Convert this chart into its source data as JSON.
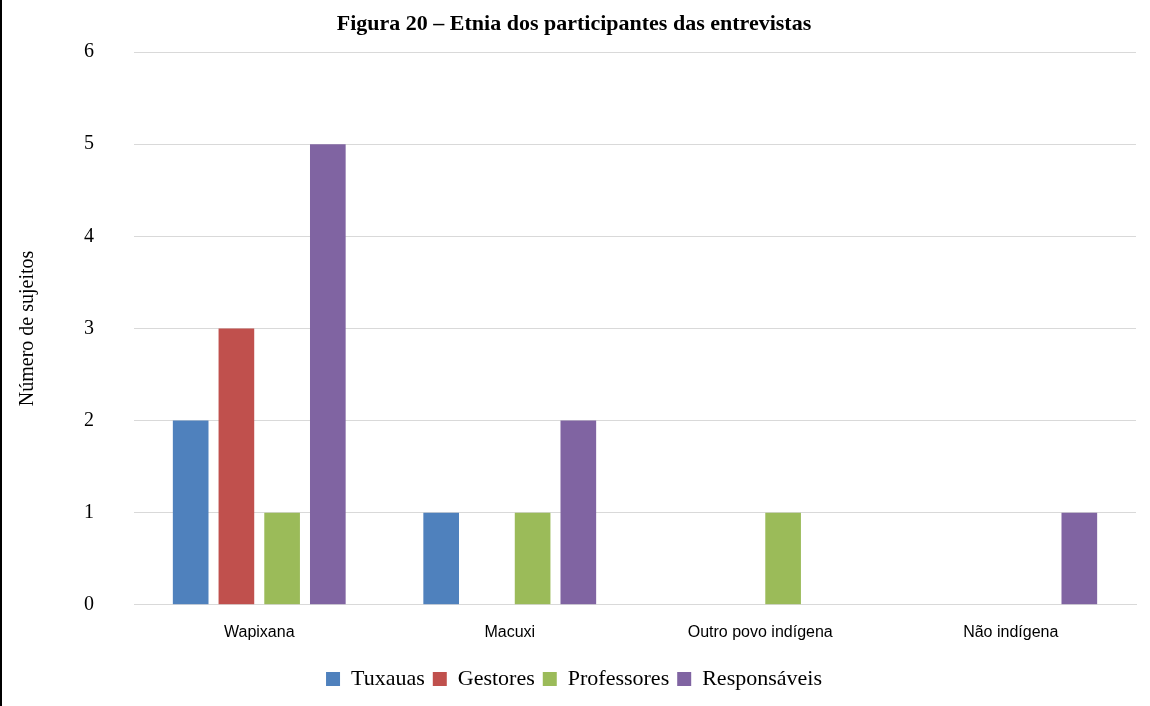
{
  "chart_data": {
    "type": "bar",
    "title": "Figura 20 – Etnia dos participantes das entrevistas",
    "ylabel": "Número de sujeitos",
    "categories": [
      "Wapixana",
      "Macuxi",
      "Outro povo indígena",
      "Não indígena"
    ],
    "series": [
      {
        "name": "Tuxauas",
        "color": "#4f81bd",
        "values": [
          2,
          1,
          0,
          0
        ]
      },
      {
        "name": "Gestores",
        "color": "#c0504d",
        "values": [
          3,
          0,
          0,
          0
        ]
      },
      {
        "name": "Professores",
        "color": "#9bbb59",
        "values": [
          1,
          1,
          1,
          0
        ]
      },
      {
        "name": "Responsáveis",
        "color": "#8064a2",
        "values": [
          5,
          2,
          0,
          1
        ]
      }
    ],
    "ylim": [
      0,
      6
    ],
    "yticks": [
      0,
      1,
      2,
      3,
      4,
      5,
      6
    ],
    "grid": "y",
    "legend": "bottom"
  }
}
